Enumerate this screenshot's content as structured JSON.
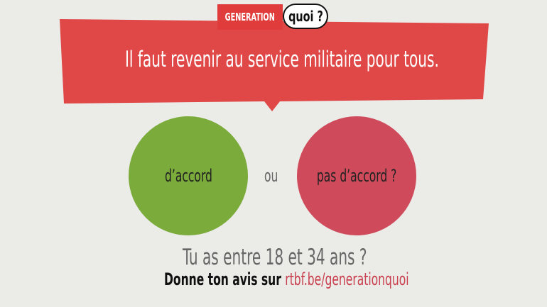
{
  "logo": {
    "left": "GENERATION",
    "right": "quoi ?"
  },
  "statement": "Il faut revenir au service militaire pour tous.",
  "choices": {
    "agree": "d’accord",
    "or": "ou",
    "disagree": "pas d’accord ?"
  },
  "footer": {
    "question": "Tu as entre 18 et 34 ans ?",
    "cta": "Donne ton avis sur",
    "link": "rtbf.be/generationquoi"
  },
  "colors": {
    "banner": "#e04848",
    "agree": "#7bab3b",
    "disagree": "#cf4b5c",
    "link": "#c9404f"
  }
}
